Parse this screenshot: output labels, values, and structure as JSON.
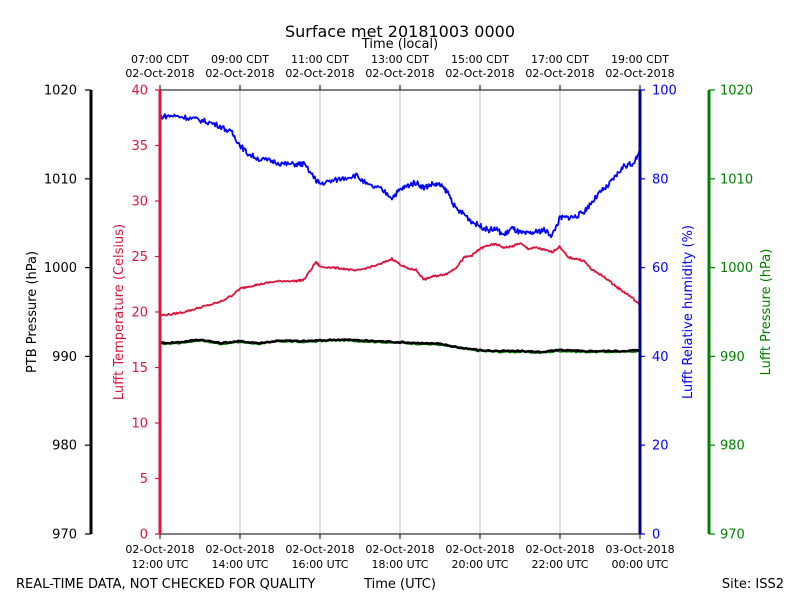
{
  "chart_data": {
    "type": "line",
    "title": "Surface met 20181003 0000",
    "top_axis_title": "Time (local)",
    "bottom_axis_title": "Time (UTC)",
    "footer_left": "REAL-TIME DATA, NOT CHECKED FOR QUALITY",
    "footer_right": "Site: ISS2",
    "x_range_hours_utc": [
      12,
      24
    ],
    "top_ticks": [
      {
        "h": 12,
        "line1": "07:00 CDT",
        "line2": "02-Oct-2018"
      },
      {
        "h": 14,
        "line1": "09:00 CDT",
        "line2": "02-Oct-2018"
      },
      {
        "h": 16,
        "line1": "11:00 CDT",
        "line2": "02-Oct-2018"
      },
      {
        "h": 18,
        "line1": "13:00 CDT",
        "line2": "02-Oct-2018"
      },
      {
        "h": 20,
        "line1": "15:00 CDT",
        "line2": "02-Oct-2018"
      },
      {
        "h": 22,
        "line1": "17:00 CDT",
        "line2": "02-Oct-2018"
      },
      {
        "h": 24,
        "line1": "19:00 CDT",
        "line2": "02-Oct-2018"
      }
    ],
    "bottom_ticks": [
      {
        "h": 12,
        "line1": "02-Oct-2018",
        "line2": "12:00 UTC"
      },
      {
        "h": 14,
        "line1": "02-Oct-2018",
        "line2": "14:00 UTC"
      },
      {
        "h": 16,
        "line1": "02-Oct-2018",
        "line2": "16:00 UTC"
      },
      {
        "h": 18,
        "line1": "02-Oct-2018",
        "line2": "18:00 UTC"
      },
      {
        "h": 20,
        "line1": "02-Oct-2018",
        "line2": "20:00 UTC"
      },
      {
        "h": 22,
        "line1": "02-Oct-2018",
        "line2": "22:00 UTC"
      },
      {
        "h": 24,
        "line1": "03-Oct-2018",
        "line2": "00:00 UTC"
      }
    ],
    "axes": {
      "ptb_pressure": {
        "label": "PTB Pressure (hPa)",
        "range": [
          970,
          1020
        ],
        "ticks": [
          970,
          980,
          990,
          1000,
          1010,
          1020
        ],
        "color": "#000000"
      },
      "temperature": {
        "label": "Lufft Temperature (Celsius)",
        "range": [
          0,
          40
        ],
        "ticks": [
          0,
          5,
          10,
          15,
          20,
          25,
          30,
          35,
          40
        ],
        "color": "#dc143c"
      },
      "humidity": {
        "label": "Lufft Relative humidity (%)",
        "range": [
          0,
          100
        ],
        "ticks": [
          0,
          20,
          40,
          60,
          80,
          100
        ],
        "color": "#0000ff"
      },
      "lufft_pressure": {
        "label": "Lufft Pressure (hPa)",
        "range": [
          970,
          1020
        ],
        "ticks": [
          970,
          980,
          990,
          1000,
          1010,
          1020
        ],
        "color": "#008000"
      }
    },
    "series": [
      {
        "name": "Lufft Temperature",
        "axis": "temperature",
        "color": "#dc143c",
        "x": [
          12.0,
          12.3,
          12.6,
          12.9,
          13.2,
          13.5,
          13.8,
          14.0,
          14.2,
          14.5,
          14.8,
          15.1,
          15.4,
          15.6,
          15.9,
          16.0,
          16.3,
          16.6,
          16.9,
          17.2,
          17.5,
          17.8,
          18.0,
          18.2,
          18.4,
          18.6,
          18.8,
          19.0,
          19.2,
          19.4,
          19.6,
          19.8,
          20.0,
          20.2,
          20.4,
          20.6,
          20.8,
          21.0,
          21.2,
          21.4,
          21.6,
          21.8,
          22.0,
          22.2,
          22.4,
          22.6,
          22.8,
          23.0,
          23.2,
          23.4,
          23.6,
          23.8,
          24.0
        ],
        "values": [
          19.7,
          19.8,
          20.0,
          20.3,
          20.6,
          20.9,
          21.5,
          22.1,
          22.3,
          22.5,
          22.7,
          22.8,
          22.8,
          22.9,
          24.5,
          24.1,
          24.0,
          23.9,
          23.7,
          24.0,
          24.3,
          24.8,
          24.3,
          23.9,
          23.8,
          22.9,
          23.2,
          23.3,
          23.5,
          24.0,
          24.9,
          25.1,
          25.7,
          26.0,
          26.1,
          25.8,
          25.9,
          26.2,
          25.7,
          25.8,
          25.6,
          25.4,
          25.9,
          24.9,
          24.8,
          24.6,
          23.8,
          23.4,
          22.9,
          22.3,
          21.8,
          21.3,
          20.6
        ]
      },
      {
        "name": "Lufft Relative humidity",
        "axis": "humidity",
        "color": "#0000ff",
        "x": [
          12.0,
          12.3,
          12.6,
          12.9,
          13.2,
          13.5,
          13.8,
          14.0,
          14.2,
          14.5,
          14.8,
          15.1,
          15.4,
          15.6,
          15.9,
          16.0,
          16.3,
          16.6,
          16.9,
          17.2,
          17.5,
          17.8,
          18.0,
          18.2,
          18.4,
          18.6,
          18.8,
          19.0,
          19.2,
          19.4,
          19.6,
          19.8,
          20.0,
          20.2,
          20.4,
          20.6,
          20.8,
          21.0,
          21.2,
          21.4,
          21.6,
          21.8,
          22.0,
          22.2,
          22.4,
          22.6,
          22.8,
          23.0,
          23.2,
          23.4,
          23.6,
          23.8,
          24.0
        ],
        "values": [
          94.0,
          94.2,
          93.9,
          93.4,
          92.8,
          91.9,
          90.3,
          87.6,
          85.6,
          84.4,
          84.0,
          83.3,
          83.3,
          83.3,
          79.7,
          78.9,
          79.5,
          80.2,
          80.8,
          78.5,
          77.8,
          75.8,
          77.5,
          78.5,
          79.2,
          78.0,
          78.8,
          78.6,
          76.9,
          73.1,
          72.1,
          70.3,
          69.4,
          68.5,
          68.7,
          67.3,
          68.9,
          67.8,
          67.6,
          68.0,
          68.5,
          67.2,
          71.2,
          71.3,
          71.5,
          72.6,
          74.8,
          76.9,
          78.4,
          80.7,
          82.9,
          83.3,
          85.9
        ]
      },
      {
        "name": "PTB Pressure",
        "axis": "ptb_pressure",
        "color": "#000000",
        "x": [
          12.0,
          12.5,
          13.0,
          13.5,
          14.0,
          14.5,
          15.0,
          15.5,
          16.0,
          16.5,
          17.0,
          17.5,
          18.0,
          18.5,
          19.0,
          19.5,
          20.0,
          20.5,
          21.0,
          21.5,
          22.0,
          22.5,
          23.0,
          23.5,
          24.0
        ],
        "values": [
          991.5,
          991.6,
          991.9,
          991.5,
          991.7,
          991.5,
          991.8,
          991.7,
          991.8,
          991.9,
          991.8,
          991.7,
          991.6,
          991.5,
          991.4,
          991.0,
          990.7,
          990.6,
          990.6,
          990.5,
          990.7,
          990.6,
          990.6,
          990.6,
          990.7
        ]
      },
      {
        "name": "Lufft Pressure",
        "axis": "lufft_pressure",
        "color": "#008000",
        "x": [
          12.0,
          12.5,
          13.0,
          13.5,
          14.0,
          14.5,
          15.0,
          15.5,
          16.0,
          16.5,
          17.0,
          17.5,
          18.0,
          18.5,
          19.0,
          19.5,
          20.0,
          20.5,
          21.0,
          21.5,
          22.0,
          22.5,
          23.0,
          23.5,
          24.0
        ],
        "values": [
          991.4,
          991.5,
          991.8,
          991.4,
          991.6,
          991.4,
          991.7,
          991.6,
          991.7,
          991.8,
          991.7,
          991.6,
          991.5,
          991.4,
          991.3,
          990.9,
          990.6,
          990.5,
          990.5,
          990.4,
          990.6,
          990.5,
          990.5,
          990.5,
          990.6
        ]
      }
    ]
  }
}
